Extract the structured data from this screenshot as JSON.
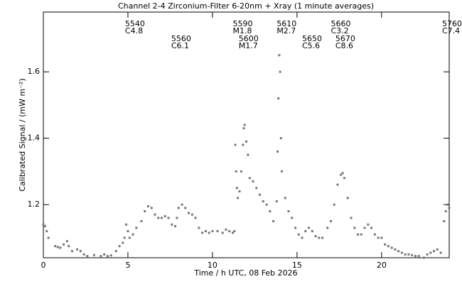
{
  "chart_data": {
    "type": "scatter",
    "title": "Channel 2-4   Zirconium-Filter   6-20nm + Xray   (1 minute averages)",
    "x_label": "Time / h UTC, 08 Feb 2026",
    "y_label": "Calibrated Signal / (mW m⁻²)",
    "xlim": [
      0,
      24
    ],
    "ylim": [
      1.04,
      1.78
    ],
    "xticks": [
      0,
      5,
      10,
      15,
      20
    ],
    "yticks": [
      1.2,
      1.4,
      1.6
    ],
    "color": "#777777",
    "series": [
      {
        "name": "Channel 2-4",
        "color": "#777777",
        "x": [
          0.0,
          0.1,
          0.2,
          0.3,
          0.7,
          0.85,
          1.0,
          1.2,
          1.4,
          1.5,
          1.7,
          2.0,
          2.2,
          2.4,
          2.6,
          3.0,
          3.4,
          3.6,
          3.8,
          4.0,
          4.3,
          4.5,
          4.7,
          4.8,
          4.9,
          5.0,
          5.1,
          5.3,
          5.5,
          5.8,
          6.0,
          6.2,
          6.4,
          6.6,
          6.8,
          7.0,
          7.2,
          7.4,
          7.6,
          7.8,
          7.9,
          8.0,
          8.2,
          8.4,
          8.6,
          8.8,
          9.0,
          9.2,
          9.4,
          9.6,
          9.8,
          10.0,
          10.3,
          10.6,
          10.8,
          11.0,
          11.2,
          11.3,
          11.35,
          11.4,
          11.45,
          11.5,
          11.6,
          11.7,
          11.8,
          11.85,
          11.9,
          12.0,
          12.1,
          12.2,
          12.4,
          12.6,
          12.8,
          13.0,
          13.2,
          13.4,
          13.6,
          13.8,
          13.85,
          13.9,
          13.95,
          14.0,
          14.05,
          14.1,
          14.3,
          14.5,
          14.7,
          14.9,
          15.1,
          15.3,
          15.5,
          15.7,
          15.9,
          16.1,
          16.3,
          16.5,
          16.8,
          17.0,
          17.2,
          17.4,
          17.6,
          17.7,
          17.8,
          18.0,
          18.2,
          18.4,
          18.6,
          18.8,
          19.0,
          19.2,
          19.4,
          19.6,
          19.8,
          20.0,
          20.2,
          20.4,
          20.6,
          20.8,
          21.0,
          21.2,
          21.4,
          21.6,
          21.8,
          22.0,
          22.2,
          22.5,
          22.7,
          22.9,
          23.1,
          23.3,
          23.5,
          23.7,
          23.8,
          23.9,
          24.0
        ],
        "values": [
          1.14,
          1.135,
          1.12,
          1.1,
          1.075,
          1.072,
          1.07,
          1.08,
          1.09,
          1.075,
          1.06,
          1.065,
          1.06,
          1.05,
          1.045,
          1.048,
          1.045,
          1.05,
          1.045,
          1.047,
          1.06,
          1.075,
          1.085,
          1.1,
          1.14,
          1.12,
          1.1,
          1.11,
          1.13,
          1.15,
          1.18,
          1.195,
          1.19,
          1.17,
          1.16,
          1.16,
          1.165,
          1.16,
          1.14,
          1.135,
          1.16,
          1.19,
          1.2,
          1.19,
          1.175,
          1.17,
          1.16,
          1.13,
          1.115,
          1.12,
          1.115,
          1.12,
          1.12,
          1.115,
          1.125,
          1.12,
          1.115,
          1.12,
          1.38,
          1.3,
          1.25,
          1.22,
          1.24,
          1.3,
          1.38,
          1.43,
          1.44,
          1.39,
          1.35,
          1.28,
          1.27,
          1.25,
          1.23,
          1.21,
          1.2,
          1.18,
          1.15,
          1.21,
          1.36,
          1.52,
          1.65,
          1.6,
          1.4,
          1.3,
          1.22,
          1.18,
          1.16,
          1.13,
          1.11,
          1.1,
          1.12,
          1.13,
          1.12,
          1.105,
          1.1,
          1.1,
          1.13,
          1.15,
          1.2,
          1.26,
          1.29,
          1.295,
          1.28,
          1.22,
          1.16,
          1.13,
          1.11,
          1.11,
          1.13,
          1.14,
          1.13,
          1.11,
          1.1,
          1.1,
          1.08,
          1.075,
          1.07,
          1.065,
          1.06,
          1.055,
          1.05,
          1.05,
          1.048,
          1.045,
          1.045,
          1.04,
          1.05,
          1.055,
          1.06,
          1.065,
          1.055,
          1.15,
          1.18,
          1.2,
          1.19
        ]
      }
    ],
    "flares": [
      {
        "time": 4.83,
        "id": "5540",
        "class": "C4.8"
      },
      {
        "time": 7.56,
        "id": "5560",
        "class": "C6.1"
      },
      {
        "time": 11.2,
        "id": "5590",
        "class": "M1.8"
      },
      {
        "time": 11.55,
        "id": "5600",
        "class": "M1.7"
      },
      {
        "time": 13.8,
        "id": "5610",
        "class": "M2.7"
      },
      {
        "time": 15.3,
        "id": "5650",
        "class": "C5.6"
      },
      {
        "time": 17.0,
        "id": "5660",
        "class": "C3.2"
      },
      {
        "time": 17.27,
        "id": "5670",
        "class": "C8.6"
      },
      {
        "time": 23.6,
        "id": "5760",
        "class": "C7.4"
      }
    ]
  }
}
